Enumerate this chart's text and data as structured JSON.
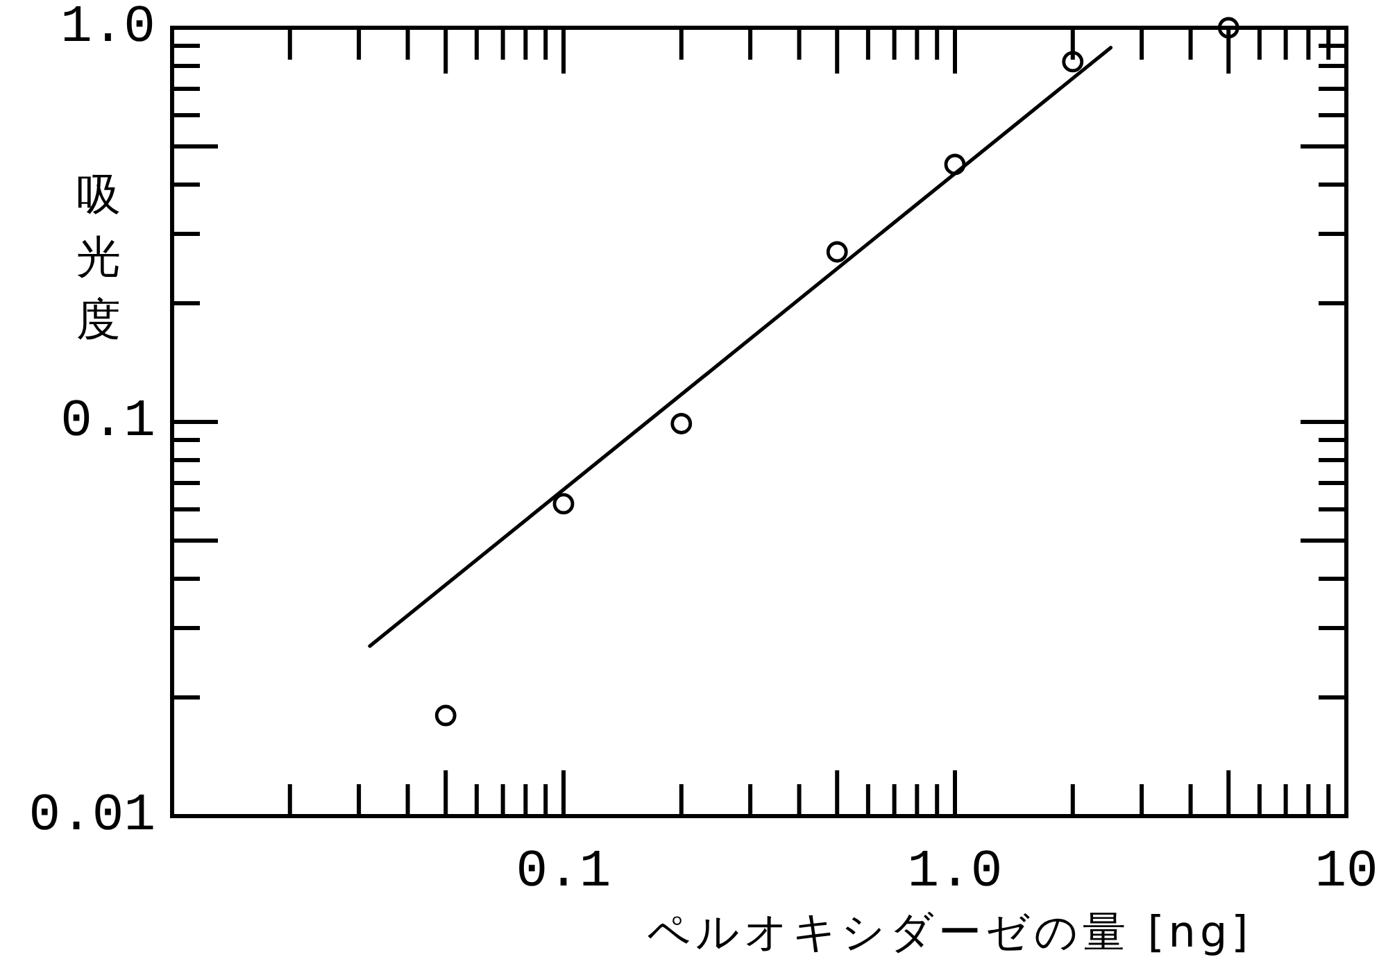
{
  "chart_data": {
    "type": "scatter",
    "xlabel": "ペルオキシダーゼの量 [ng]",
    "ylabel": "吸光度",
    "log": "xy",
    "marker": "circle",
    "xlim": [
      0.01,
      10
    ],
    "ylim": [
      0.01,
      1
    ],
    "xticks": [
      0.1,
      {
        "value": 1,
        "label": "1.0"
      },
      10
    ],
    "yticks": [
      0.01,
      0.1,
      {
        "value": 1,
        "label": "1.0"
      }
    ],
    "series": [
      {
        "type": "scatter",
        "color": "#000000",
        "x": [
          0.05,
          0.1,
          0.2,
          0.5,
          1,
          2,
          5
        ],
        "values": [
          0.018,
          0.062,
          0.099,
          0.27,
          0.45,
          0.82,
          1.0
        ]
      },
      {
        "type": "line",
        "color": "#000000",
        "marker": "none",
        "x": [
          0.032,
          2.5
        ],
        "values": [
          0.027,
          0.89
        ]
      }
    ]
  }
}
